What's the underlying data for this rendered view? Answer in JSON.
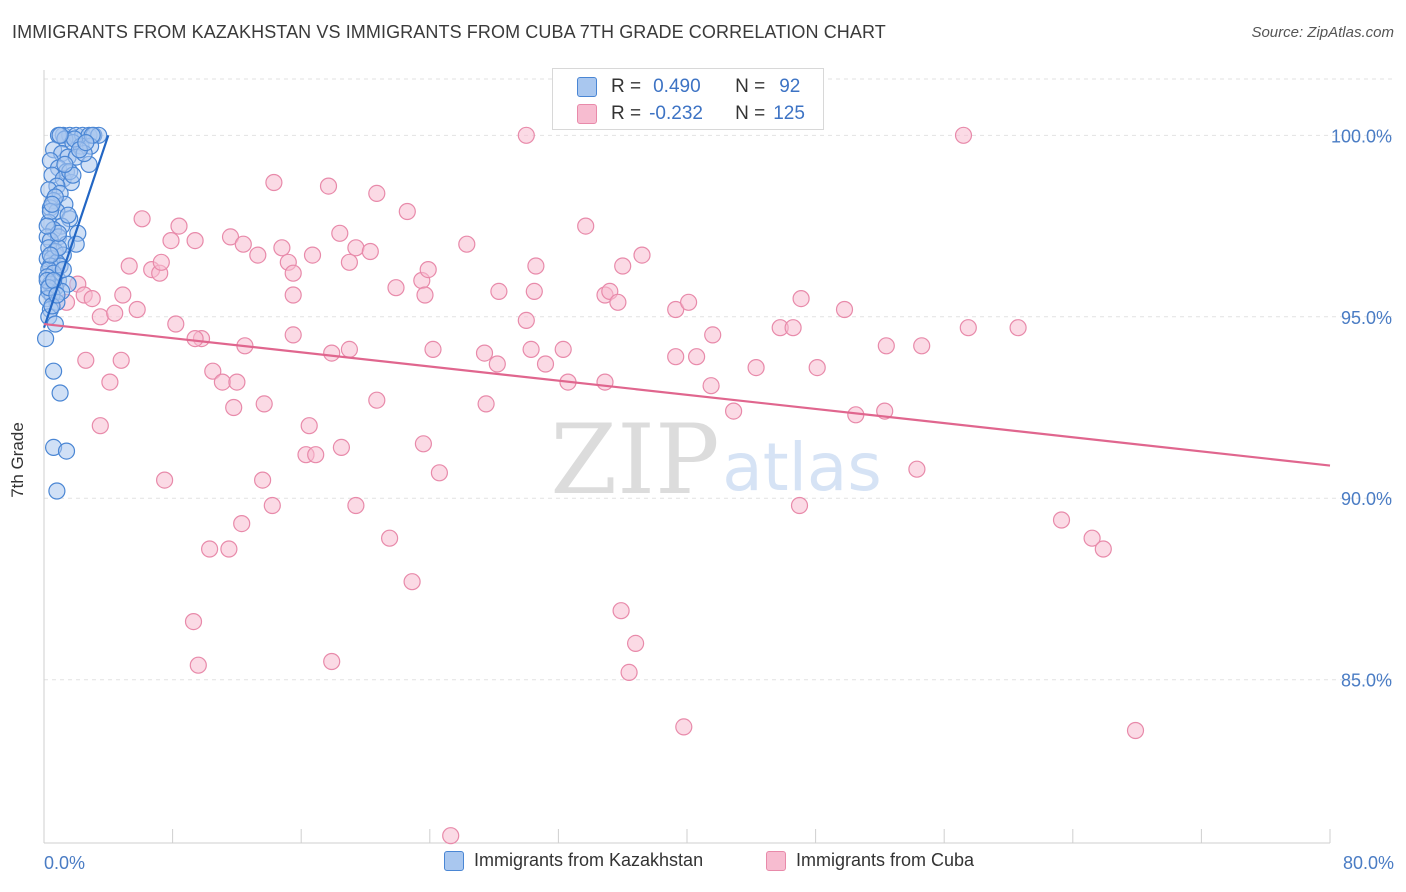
{
  "title": "IMMIGRANTS FROM KAZAKHSTAN VS IMMIGRANTS FROM CUBA 7TH GRADE CORRELATION CHART",
  "source": "Source: ZipAtlas.com",
  "watermark": {
    "zip": "ZIP",
    "atlas": "atlas"
  },
  "stats": {
    "r_label": "R =",
    "n_label": "N =",
    "kazakhstan": {
      "r": "0.490",
      "n": "92"
    },
    "cuba": {
      "r": "-0.232",
      "n": "125"
    }
  },
  "legend": {
    "kazakhstan": "Immigrants from Kazakhstan",
    "cuba": "Immigrants from Cuba"
  },
  "colors": {
    "kazakhstan_fill": "#a9c7ef",
    "kazakhstan_stroke": "#4a86d4",
    "kazakhstan_line": "#2266c4",
    "cuba_fill": "#f7bcd0",
    "cuba_stroke": "#e88aaa",
    "cuba_line": "#e0668e",
    "axis_text": "#4a7cc4"
  },
  "chart_data": {
    "type": "scatter",
    "ylabel": "7th Grade",
    "xlim": [
      0,
      80
    ],
    "ylim": [
      80.5,
      101.8
    ],
    "x_tick_labels": [
      "0.0%",
      "80.0%"
    ],
    "y_ticks": [
      {
        "value": 100,
        "label": "100.0%"
      },
      {
        "value": 95,
        "label": "95.0%"
      },
      {
        "value": 90,
        "label": "90.0%"
      },
      {
        "value": 85,
        "label": "85.0%"
      }
    ],
    "grid": true,
    "legend_position": "bottom",
    "series": [
      {
        "name": "Immigrants from Kazakhstan",
        "trend": [
          [
            0.0,
            94.7
          ],
          [
            4.0,
            100.0
          ]
        ],
        "points": [
          [
            1.2,
            100.0
          ],
          [
            1.6,
            100.0
          ],
          [
            2.0,
            100.0
          ],
          [
            2.4,
            100.0
          ],
          [
            2.8,
            100.0
          ],
          [
            3.1,
            100.0
          ],
          [
            3.4,
            100.0
          ],
          [
            0.9,
            100.0
          ],
          [
            1.3,
            99.9
          ],
          [
            1.8,
            99.8
          ],
          [
            2.3,
            99.7
          ],
          [
            2.9,
            99.7
          ],
          [
            0.6,
            99.6
          ],
          [
            1.1,
            99.5
          ],
          [
            1.5,
            99.4
          ],
          [
            2.0,
            99.4
          ],
          [
            0.4,
            99.3
          ],
          [
            2.8,
            99.2
          ],
          [
            0.9,
            99.1
          ],
          [
            1.4,
            99.0
          ],
          [
            0.5,
            98.9
          ],
          [
            1.2,
            98.8
          ],
          [
            1.7,
            98.7
          ],
          [
            0.8,
            98.6
          ],
          [
            0.3,
            98.5
          ],
          [
            1.0,
            98.4
          ],
          [
            0.6,
            98.2
          ],
          [
            1.3,
            98.1
          ],
          [
            0.4,
            98.0
          ],
          [
            0.8,
            97.9
          ],
          [
            1.6,
            97.7
          ],
          [
            0.3,
            97.6
          ],
          [
            1.1,
            97.5
          ],
          [
            0.6,
            97.4
          ],
          [
            2.1,
            97.3
          ],
          [
            0.2,
            97.2
          ],
          [
            0.9,
            97.2
          ],
          [
            0.4,
            97.1
          ],
          [
            1.4,
            97.0
          ],
          [
            2.0,
            97.0
          ],
          [
            0.3,
            96.9
          ],
          [
            0.7,
            96.8
          ],
          [
            1.2,
            96.7
          ],
          [
            0.2,
            96.6
          ],
          [
            0.5,
            96.6
          ],
          [
            0.8,
            96.5
          ],
          [
            0.4,
            96.4
          ],
          [
            1.0,
            96.4
          ],
          [
            0.3,
            96.3
          ],
          [
            0.6,
            96.2
          ],
          [
            0.2,
            96.1
          ],
          [
            0.9,
            96.0
          ],
          [
            0.4,
            95.9
          ],
          [
            1.5,
            95.9
          ],
          [
            0.7,
            95.8
          ],
          [
            0.3,
            95.7
          ],
          [
            1.1,
            95.7
          ],
          [
            0.5,
            95.6
          ],
          [
            0.2,
            95.5
          ],
          [
            0.8,
            95.4
          ],
          [
            0.4,
            95.2
          ],
          [
            0.3,
            95.0
          ],
          [
            0.7,
            94.8
          ],
          [
            0.1,
            94.4
          ],
          [
            0.6,
            93.5
          ],
          [
            1.0,
            92.9
          ],
          [
            0.6,
            91.4
          ],
          [
            1.4,
            91.3
          ],
          [
            0.8,
            90.2
          ],
          [
            0.2,
            96.0
          ],
          [
            0.5,
            95.3
          ],
          [
            0.9,
            96.9
          ],
          [
            1.6,
            99.0
          ],
          [
            2.5,
            99.5
          ],
          [
            0.7,
            98.3
          ],
          [
            1.9,
            99.9
          ],
          [
            3.0,
            100.0
          ],
          [
            0.4,
            97.9
          ],
          [
            1.2,
            96.3
          ],
          [
            0.3,
            95.8
          ],
          [
            2.2,
            99.6
          ],
          [
            0.5,
            98.1
          ],
          [
            1.8,
            98.9
          ],
          [
            0.9,
            97.3
          ],
          [
            0.6,
            96.0
          ],
          [
            1.3,
            99.2
          ],
          [
            0.2,
            97.5
          ],
          [
            1.0,
            100.0
          ],
          [
            2.6,
            99.8
          ],
          [
            0.8,
            95.6
          ],
          [
            1.5,
            97.8
          ],
          [
            0.4,
            96.7
          ]
        ]
      },
      {
        "name": "Immigrants from Cuba",
        "trend": [
          [
            0.0,
            94.8
          ],
          [
            80.0,
            90.9
          ]
        ],
        "points": [
          [
            30.0,
            100.0
          ],
          [
            57.2,
            100.0
          ],
          [
            14.3,
            98.7
          ],
          [
            17.7,
            98.6
          ],
          [
            20.7,
            98.4
          ],
          [
            22.6,
            97.9
          ],
          [
            33.7,
            97.5
          ],
          [
            6.1,
            97.7
          ],
          [
            8.4,
            97.5
          ],
          [
            7.9,
            97.1
          ],
          [
            9.4,
            97.1
          ],
          [
            11.6,
            97.2
          ],
          [
            14.8,
            96.9
          ],
          [
            12.4,
            97.0
          ],
          [
            18.4,
            97.3
          ],
          [
            19.4,
            96.9
          ],
          [
            20.3,
            96.8
          ],
          [
            26.3,
            97.0
          ],
          [
            37.2,
            96.7
          ],
          [
            13.3,
            96.7
          ],
          [
            16.7,
            96.7
          ],
          [
            19.0,
            96.5
          ],
          [
            15.2,
            96.5
          ],
          [
            5.3,
            96.4
          ],
          [
            6.7,
            96.3
          ],
          [
            7.2,
            96.2
          ],
          [
            7.3,
            96.5
          ],
          [
            1.4,
            95.4
          ],
          [
            2.1,
            95.9
          ],
          [
            2.5,
            95.6
          ],
          [
            3.0,
            95.5
          ],
          [
            4.9,
            95.6
          ],
          [
            15.5,
            95.6
          ],
          [
            15.5,
            96.2
          ],
          [
            21.9,
            95.8
          ],
          [
            23.5,
            96.0
          ],
          [
            23.9,
            96.3
          ],
          [
            23.7,
            95.6
          ],
          [
            28.3,
            95.7
          ],
          [
            30.6,
            96.4
          ],
          [
            30.5,
            95.7
          ],
          [
            34.9,
            95.6
          ],
          [
            35.2,
            95.7
          ],
          [
            39.3,
            95.2
          ],
          [
            40.1,
            95.4
          ],
          [
            47.1,
            95.5
          ],
          [
            49.8,
            95.2
          ],
          [
            3.5,
            95.0
          ],
          [
            4.4,
            95.1
          ],
          [
            5.8,
            95.2
          ],
          [
            8.2,
            94.8
          ],
          [
            9.8,
            94.4
          ],
          [
            9.4,
            94.4
          ],
          [
            12.5,
            94.2
          ],
          [
            15.5,
            94.5
          ],
          [
            17.9,
            94.0
          ],
          [
            19.0,
            94.1
          ],
          [
            24.2,
            94.1
          ],
          [
            27.4,
            94.0
          ],
          [
            28.2,
            93.7
          ],
          [
            30.0,
            94.9
          ],
          [
            30.3,
            94.1
          ],
          [
            31.2,
            93.7
          ],
          [
            32.3,
            94.1
          ],
          [
            32.6,
            93.2
          ],
          [
            34.9,
            93.2
          ],
          [
            35.7,
            95.4
          ],
          [
            40.6,
            93.9
          ],
          [
            41.6,
            94.5
          ],
          [
            41.5,
            93.1
          ],
          [
            44.3,
            93.6
          ],
          [
            45.8,
            94.7
          ],
          [
            46.6,
            94.7
          ],
          [
            48.1,
            93.6
          ],
          [
            52.4,
            94.2
          ],
          [
            54.6,
            94.2
          ],
          [
            57.5,
            94.7
          ],
          [
            2.6,
            93.8
          ],
          [
            4.8,
            93.8
          ],
          [
            4.1,
            93.2
          ],
          [
            10.5,
            93.5
          ],
          [
            11.1,
            93.2
          ],
          [
            12.0,
            93.2
          ],
          [
            11.8,
            92.5
          ],
          [
            13.7,
            92.6
          ],
          [
            20.7,
            92.7
          ],
          [
            27.5,
            92.6
          ],
          [
            42.9,
            92.4
          ],
          [
            50.5,
            92.3
          ],
          [
            52.3,
            92.4
          ],
          [
            3.5,
            92.0
          ],
          [
            16.5,
            92.0
          ],
          [
            16.3,
            91.2
          ],
          [
            16.9,
            91.2
          ],
          [
            18.5,
            91.4
          ],
          [
            23.6,
            91.5
          ],
          [
            24.6,
            90.7
          ],
          [
            7.5,
            90.5
          ],
          [
            13.6,
            90.5
          ],
          [
            14.2,
            89.8
          ],
          [
            19.4,
            89.8
          ],
          [
            47.0,
            89.8
          ],
          [
            12.3,
            89.3
          ],
          [
            21.5,
            88.9
          ],
          [
            10.3,
            88.6
          ],
          [
            11.5,
            88.6
          ],
          [
            63.3,
            89.4
          ],
          [
            65.2,
            88.9
          ],
          [
            65.9,
            88.6
          ],
          [
            22.9,
            87.7
          ],
          [
            35.9,
            86.9
          ],
          [
            9.3,
            86.6
          ],
          [
            36.8,
            86.0
          ],
          [
            9.6,
            85.4
          ],
          [
            17.9,
            85.5
          ],
          [
            36.4,
            85.2
          ],
          [
            39.8,
            83.7
          ],
          [
            67.9,
            83.6
          ],
          [
            25.3,
            80.7
          ],
          [
            54.3,
            90.8
          ],
          [
            60.6,
            94.7
          ],
          [
            39.3,
            93.9
          ],
          [
            36.0,
            96.4
          ]
        ]
      }
    ]
  }
}
